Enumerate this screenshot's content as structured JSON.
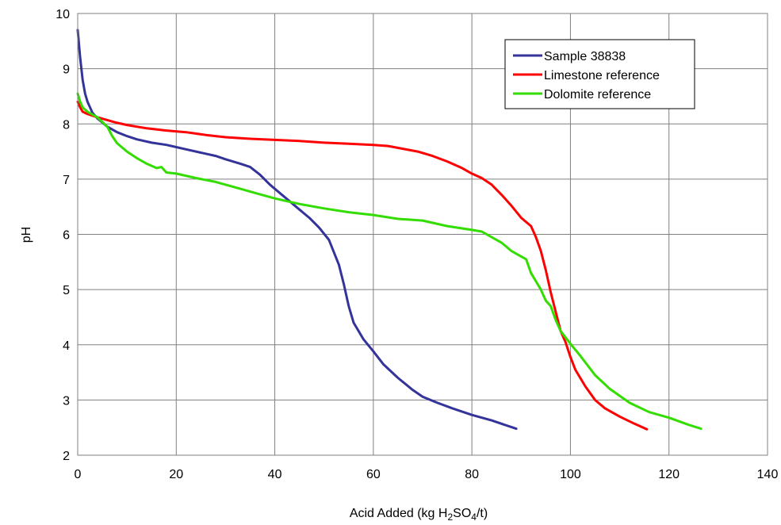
{
  "chart_data": {
    "type": "line",
    "title": "",
    "xlabel": {
      "prefix": "Acid Added (kg H",
      "sub1": "2",
      "mid": "SO",
      "sub2": "4",
      "suffix": "/t)"
    },
    "ylabel": "pH",
    "xlim": [
      0,
      140
    ],
    "ylim": [
      2,
      10
    ],
    "xticks": [
      0,
      20,
      40,
      60,
      80,
      100,
      120,
      140
    ],
    "yticks": [
      2,
      3,
      4,
      5,
      6,
      7,
      8,
      9,
      10
    ],
    "grid": true,
    "legend_position": "top-right",
    "series": [
      {
        "name": "Sample 38838",
        "color": "#33339a",
        "points": [
          [
            0,
            9.7
          ],
          [
            0.5,
            9.2
          ],
          [
            1,
            8.8
          ],
          [
            1.5,
            8.55
          ],
          [
            2,
            8.4
          ],
          [
            3,
            8.2
          ],
          [
            4,
            8.1
          ],
          [
            6,
            7.95
          ],
          [
            8,
            7.85
          ],
          [
            10,
            7.78
          ],
          [
            12,
            7.72
          ],
          [
            15,
            7.66
          ],
          [
            18,
            7.62
          ],
          [
            20,
            7.58
          ],
          [
            22,
            7.54
          ],
          [
            25,
            7.48
          ],
          [
            28,
            7.42
          ],
          [
            30,
            7.36
          ],
          [
            33,
            7.28
          ],
          [
            35,
            7.22
          ],
          [
            37,
            7.08
          ],
          [
            39,
            6.9
          ],
          [
            41,
            6.75
          ],
          [
            43,
            6.6
          ],
          [
            45,
            6.45
          ],
          [
            47,
            6.3
          ],
          [
            49,
            6.12
          ],
          [
            51,
            5.9
          ],
          [
            53,
            5.45
          ],
          [
            54,
            5.1
          ],
          [
            55,
            4.7
          ],
          [
            56,
            4.4
          ],
          [
            58,
            4.1
          ],
          [
            60,
            3.88
          ],
          [
            62,
            3.65
          ],
          [
            65,
            3.4
          ],
          [
            68,
            3.18
          ],
          [
            70,
            3.06
          ],
          [
            73,
            2.95
          ],
          [
            76,
            2.85
          ],
          [
            80,
            2.73
          ],
          [
            84,
            2.63
          ],
          [
            89,
            2.48
          ]
        ]
      },
      {
        "name": "Limestone reference",
        "color": "#ff0000",
        "points": [
          [
            0,
            8.4
          ],
          [
            0.5,
            8.3
          ],
          [
            1,
            8.22
          ],
          [
            2,
            8.18
          ],
          [
            4,
            8.12
          ],
          [
            6,
            8.07
          ],
          [
            8,
            8.02
          ],
          [
            10,
            7.98
          ],
          [
            14,
            7.92
          ],
          [
            18,
            7.88
          ],
          [
            22,
            7.85
          ],
          [
            26,
            7.8
          ],
          [
            30,
            7.76
          ],
          [
            35,
            7.73
          ],
          [
            40,
            7.71
          ],
          [
            45,
            7.69
          ],
          [
            50,
            7.66
          ],
          [
            55,
            7.64
          ],
          [
            60,
            7.62
          ],
          [
            63,
            7.6
          ],
          [
            66,
            7.55
          ],
          [
            69,
            7.5
          ],
          [
            72,
            7.42
          ],
          [
            75,
            7.32
          ],
          [
            78,
            7.2
          ],
          [
            80,
            7.1
          ],
          [
            82,
            7.02
          ],
          [
            84,
            6.9
          ],
          [
            86,
            6.72
          ],
          [
            88,
            6.52
          ],
          [
            90,
            6.3
          ],
          [
            92,
            6.15
          ],
          [
            93,
            5.95
          ],
          [
            94,
            5.7
          ],
          [
            95,
            5.35
          ],
          [
            96,
            4.95
          ],
          [
            97,
            4.6
          ],
          [
            98,
            4.25
          ],
          [
            99,
            4.05
          ],
          [
            100,
            3.78
          ],
          [
            101,
            3.55
          ],
          [
            103,
            3.25
          ],
          [
            105,
            3.0
          ],
          [
            107,
            2.85
          ],
          [
            110,
            2.7
          ],
          [
            113,
            2.57
          ],
          [
            115.5,
            2.47
          ]
        ]
      },
      {
        "name": "Dolomite reference",
        "color": "#33dd00",
        "points": [
          [
            0,
            8.55
          ],
          [
            0.5,
            8.4
          ],
          [
            1,
            8.3
          ],
          [
            2,
            8.22
          ],
          [
            4,
            8.12
          ],
          [
            6,
            7.95
          ],
          [
            7,
            7.78
          ],
          [
            8,
            7.65
          ],
          [
            10,
            7.5
          ],
          [
            12,
            7.38
          ],
          [
            14,
            7.28
          ],
          [
            16,
            7.2
          ],
          [
            17,
            7.22
          ],
          [
            18,
            7.12
          ],
          [
            20,
            7.1
          ],
          [
            24,
            7.02
          ],
          [
            28,
            6.95
          ],
          [
            32,
            6.85
          ],
          [
            36,
            6.75
          ],
          [
            40,
            6.65
          ],
          [
            45,
            6.55
          ],
          [
            50,
            6.47
          ],
          [
            55,
            6.4
          ],
          [
            60,
            6.35
          ],
          [
            65,
            6.28
          ],
          [
            70,
            6.25
          ],
          [
            75,
            6.15
          ],
          [
            80,
            6.08
          ],
          [
            82,
            6.05
          ],
          [
            84,
            5.95
          ],
          [
            86,
            5.85
          ],
          [
            88,
            5.7
          ],
          [
            90,
            5.6
          ],
          [
            91,
            5.55
          ],
          [
            92,
            5.3
          ],
          [
            94,
            5.0
          ],
          [
            95,
            4.8
          ],
          [
            96,
            4.7
          ],
          [
            97,
            4.45
          ],
          [
            98,
            4.25
          ],
          [
            100,
            4.02
          ],
          [
            102,
            3.8
          ],
          [
            105,
            3.45
          ],
          [
            108,
            3.2
          ],
          [
            112,
            2.95
          ],
          [
            116,
            2.78
          ],
          [
            120,
            2.68
          ],
          [
            124,
            2.55
          ],
          [
            126.5,
            2.48
          ]
        ]
      }
    ]
  }
}
